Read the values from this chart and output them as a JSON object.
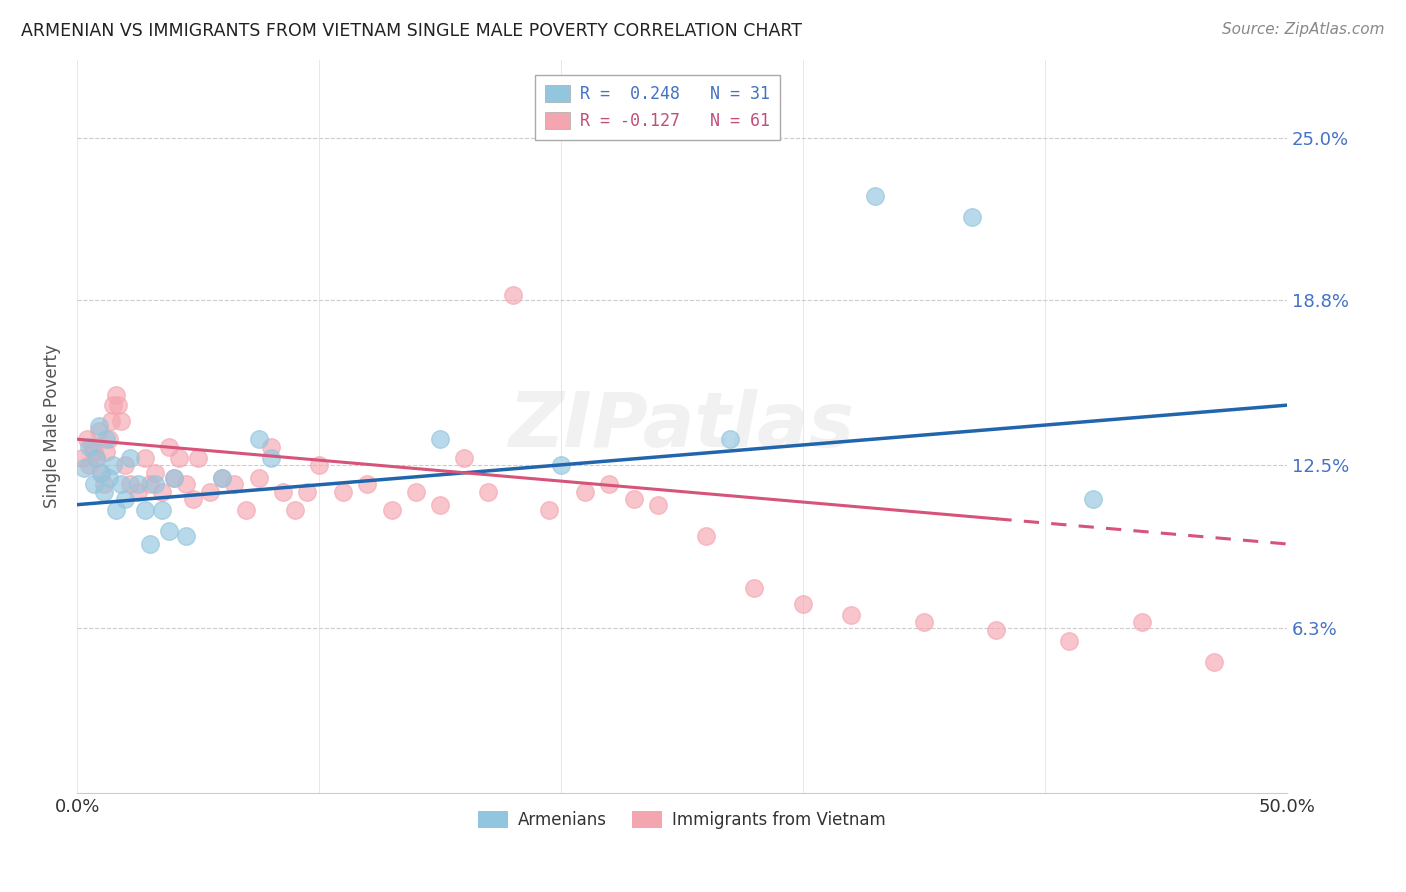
{
  "title": "ARMENIAN VS IMMIGRANTS FROM VIETNAM SINGLE MALE POVERTY CORRELATION CHART",
  "source": "Source: ZipAtlas.com",
  "ylabel": "Single Male Poverty",
  "xlim": [
    0.0,
    0.5
  ],
  "ylim": [
    0.0,
    0.28
  ],
  "yticks": [
    0.063,
    0.125,
    0.188,
    0.25
  ],
  "ytick_labels": [
    "6.3%",
    "12.5%",
    "18.8%",
    "25.0%"
  ],
  "xticks": [
    0.0,
    0.1,
    0.2,
    0.3,
    0.4,
    0.5
  ],
  "xtick_labels": [
    "0.0%",
    "",
    "",
    "",
    "",
    "50.0%"
  ],
  "blue_color": "#92c5de",
  "pink_color": "#f4a6b0",
  "blue_line_color": "#2166ac",
  "pink_line_color": "#d6537a",
  "watermark": "ZIPatlas",
  "armenians_x": [
    0.003,
    0.005,
    0.007,
    0.008,
    0.009,
    0.01,
    0.011,
    0.012,
    0.013,
    0.015,
    0.016,
    0.018,
    0.02,
    0.022,
    0.025,
    0.028,
    0.03,
    0.032,
    0.035,
    0.038,
    0.04,
    0.045,
    0.06,
    0.075,
    0.08,
    0.15,
    0.2,
    0.27,
    0.33,
    0.37,
    0.42
  ],
  "armenians_y": [
    0.124,
    0.132,
    0.118,
    0.128,
    0.14,
    0.122,
    0.115,
    0.135,
    0.12,
    0.125,
    0.108,
    0.118,
    0.112,
    0.128,
    0.118,
    0.108,
    0.095,
    0.118,
    0.108,
    0.1,
    0.12,
    0.098,
    0.12,
    0.135,
    0.128,
    0.135,
    0.125,
    0.135,
    0.228,
    0.22,
    0.112
  ],
  "vietnam_x": [
    0.002,
    0.004,
    0.005,
    0.006,
    0.007,
    0.008,
    0.009,
    0.01,
    0.011,
    0.012,
    0.013,
    0.014,
    0.015,
    0.016,
    0.017,
    0.018,
    0.02,
    0.022,
    0.025,
    0.028,
    0.03,
    0.032,
    0.035,
    0.038,
    0.04,
    0.042,
    0.045,
    0.048,
    0.05,
    0.055,
    0.06,
    0.065,
    0.07,
    0.075,
    0.08,
    0.085,
    0.09,
    0.095,
    0.1,
    0.11,
    0.12,
    0.13,
    0.14,
    0.15,
    0.16,
    0.17,
    0.18,
    0.195,
    0.21,
    0.22,
    0.23,
    0.24,
    0.26,
    0.28,
    0.3,
    0.32,
    0.35,
    0.38,
    0.41,
    0.44,
    0.47
  ],
  "vietnam_y": [
    0.128,
    0.135,
    0.125,
    0.132,
    0.13,
    0.128,
    0.138,
    0.122,
    0.118,
    0.13,
    0.135,
    0.142,
    0.148,
    0.152,
    0.148,
    0.142,
    0.125,
    0.118,
    0.115,
    0.128,
    0.118,
    0.122,
    0.115,
    0.132,
    0.12,
    0.128,
    0.118,
    0.112,
    0.128,
    0.115,
    0.12,
    0.118,
    0.108,
    0.12,
    0.132,
    0.115,
    0.108,
    0.115,
    0.125,
    0.115,
    0.118,
    0.108,
    0.115,
    0.11,
    0.128,
    0.115,
    0.19,
    0.108,
    0.115,
    0.118,
    0.112,
    0.11,
    0.098,
    0.078,
    0.072,
    0.068,
    0.065,
    0.062,
    0.058,
    0.065,
    0.05
  ]
}
